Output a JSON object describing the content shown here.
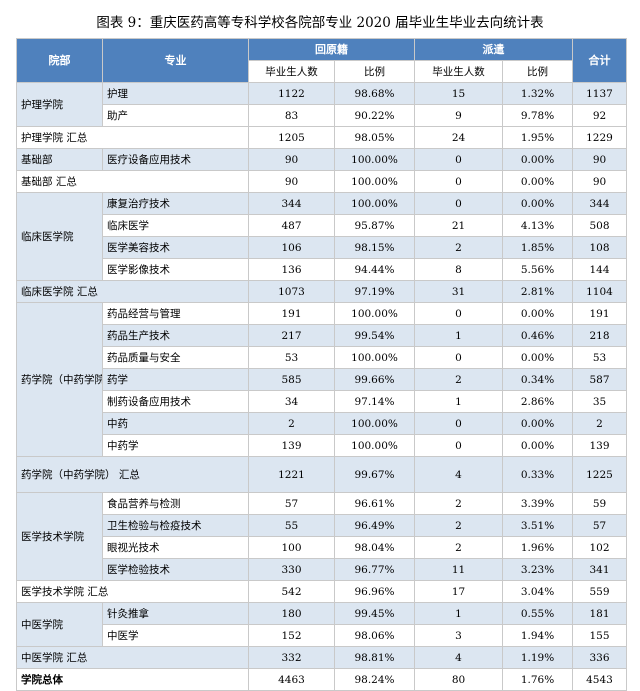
{
  "caption": "图表 9：重庆医药高等专科学校各院部专业 2020 届毕业生毕业去向统计表",
  "headers": {
    "col_dept": "院部",
    "col_major": "专业",
    "group_return": "回原籍",
    "group_dispatch": "派遣",
    "col_total": "合计",
    "sub_grads": "毕业生人数",
    "sub_ratio": "比例"
  },
  "rows": [
    {
      "dept": "护理学院",
      "major": "护理",
      "rg": "1122",
      "rr": "98.68%",
      "dg": "15",
      "dr": "1.32%",
      "total": "1137"
    },
    {
      "dept": "",
      "major": "助产",
      "rg": "83",
      "rr": "90.22%",
      "dg": "9",
      "dr": "9.78%",
      "total": "92"
    },
    {
      "dept": "护理学院 汇总",
      "major": "",
      "rg": "1205",
      "rr": "98.05%",
      "dg": "24",
      "dr": "1.95%",
      "total": "1229"
    },
    {
      "dept": "基础部",
      "major": "医疗设备应用技术",
      "rg": "90",
      "rr": "100.00%",
      "dg": "0",
      "dr": "0.00%",
      "total": "90"
    },
    {
      "dept": "基础部 汇总",
      "major": "",
      "rg": "90",
      "rr": "100.00%",
      "dg": "0",
      "dr": "0.00%",
      "total": "90"
    },
    {
      "dept": "临床医学院",
      "major": "康复治疗技术",
      "rg": "344",
      "rr": "100.00%",
      "dg": "0",
      "dr": "0.00%",
      "total": "344"
    },
    {
      "dept": "",
      "major": "临床医学",
      "rg": "487",
      "rr": "95.87%",
      "dg": "21",
      "dr": "4.13%",
      "total": "508"
    },
    {
      "dept": "",
      "major": "医学美容技术",
      "rg": "106",
      "rr": "98.15%",
      "dg": "2",
      "dr": "1.85%",
      "total": "108"
    },
    {
      "dept": "",
      "major": "医学影像技术",
      "rg": "136",
      "rr": "94.44%",
      "dg": "8",
      "dr": "5.56%",
      "total": "144"
    },
    {
      "dept": "临床医学院 汇总",
      "major": "",
      "rg": "1073",
      "rr": "97.19%",
      "dg": "31",
      "dr": "2.81%",
      "total": "1104"
    },
    {
      "dept": "药学院（中药学院）",
      "major": "药品经营与管理",
      "rg": "191",
      "rr": "100.00%",
      "dg": "0",
      "dr": "0.00%",
      "total": "191"
    },
    {
      "dept": "",
      "major": "药品生产技术",
      "rg": "217",
      "rr": "99.54%",
      "dg": "1",
      "dr": "0.46%",
      "total": "218"
    },
    {
      "dept": "",
      "major": "药品质量与安全",
      "rg": "53",
      "rr": "100.00%",
      "dg": "0",
      "dr": "0.00%",
      "total": "53"
    },
    {
      "dept": "",
      "major": "药学",
      "rg": "585",
      "rr": "99.66%",
      "dg": "2",
      "dr": "0.34%",
      "total": "587"
    },
    {
      "dept": "",
      "major": "制药设备应用技术",
      "rg": "34",
      "rr": "97.14%",
      "dg": "1",
      "dr": "2.86%",
      "total": "35"
    },
    {
      "dept": "",
      "major": "中药",
      "rg": "2",
      "rr": "100.00%",
      "dg": "0",
      "dr": "0.00%",
      "total": "2"
    },
    {
      "dept": "",
      "major": "中药学",
      "rg": "139",
      "rr": "100.00%",
      "dg": "0",
      "dr": "0.00%",
      "total": "139"
    },
    {
      "dept": "药学院（中药学院） 汇总",
      "major": "",
      "rg": "1221",
      "rr": "99.67%",
      "dg": "4",
      "dr": "0.33%",
      "total": "1225"
    },
    {
      "dept": "医学技术学院",
      "major": "食品营养与检测",
      "rg": "57",
      "rr": "96.61%",
      "dg": "2",
      "dr": "3.39%",
      "total": "59"
    },
    {
      "dept": "",
      "major": "卫生检验与检疫技术",
      "rg": "55",
      "rr": "96.49%",
      "dg": "2",
      "dr": "3.51%",
      "total": "57"
    },
    {
      "dept": "",
      "major": "眼视光技术",
      "rg": "100",
      "rr": "98.04%",
      "dg": "2",
      "dr": "1.96%",
      "total": "102"
    },
    {
      "dept": "",
      "major": "医学检验技术",
      "rg": "330",
      "rr": "96.77%",
      "dg": "11",
      "dr": "3.23%",
      "total": "341"
    },
    {
      "dept": "医学技术学院 汇总",
      "major": "",
      "rg": "542",
      "rr": "96.96%",
      "dg": "17",
      "dr": "3.04%",
      "total": "559"
    },
    {
      "dept": "中医学院",
      "major": "针灸推拿",
      "rg": "180",
      "rr": "99.45%",
      "dg": "1",
      "dr": "0.55%",
      "total": "181"
    },
    {
      "dept": "",
      "major": "中医学",
      "rg": "152",
      "rr": "98.06%",
      "dg": "3",
      "dr": "1.94%",
      "total": "155"
    },
    {
      "dept": "中医学院 汇总",
      "major": "",
      "rg": "332",
      "rr": "98.81%",
      "dg": "4",
      "dr": "1.19%",
      "total": "336"
    },
    {
      "dept": "学院总体",
      "major": "",
      "rg": "4463",
      "rr": "98.24%",
      "dg": "80",
      "dr": "1.76%",
      "total": "4543"
    }
  ]
}
